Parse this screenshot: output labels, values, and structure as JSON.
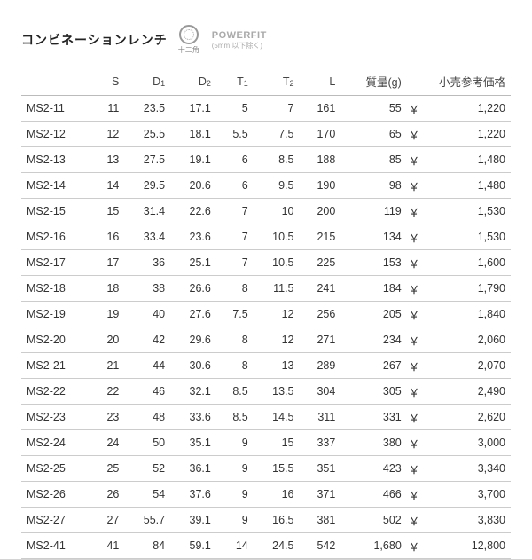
{
  "header": {
    "title": "コンビネーションレンチ",
    "icon_sub": "十二角",
    "brand_main": "POWERFIT",
    "brand_sub": "(5mm 以下除く)"
  },
  "table": {
    "columns": [
      "",
      "S",
      "D1",
      "D2",
      "T1",
      "T2",
      "L",
      "質量(g)",
      "小売参考価格"
    ],
    "col_subscripts": {
      "D1": "1",
      "D2": "2",
      "T1": "1",
      "T2": "2"
    },
    "yen_symbol": "￥",
    "rows": [
      [
        "MS2-11",
        "11",
        "23.5",
        "17.1",
        "5",
        "7",
        "161",
        "55",
        "1,220"
      ],
      [
        "MS2-12",
        "12",
        "25.5",
        "18.1",
        "5.5",
        "7.5",
        "170",
        "65",
        "1,220"
      ],
      [
        "MS2-13",
        "13",
        "27.5",
        "19.1",
        "6",
        "8.5",
        "188",
        "85",
        "1,480"
      ],
      [
        "MS2-14",
        "14",
        "29.5",
        "20.6",
        "6",
        "9.5",
        "190",
        "98",
        "1,480"
      ],
      [
        "MS2-15",
        "15",
        "31.4",
        "22.6",
        "7",
        "10",
        "200",
        "119",
        "1,530"
      ],
      [
        "MS2-16",
        "16",
        "33.4",
        "23.6",
        "7",
        "10.5",
        "215",
        "134",
        "1,530"
      ],
      [
        "MS2-17",
        "17",
        "36",
        "25.1",
        "7",
        "10.5",
        "225",
        "153",
        "1,600"
      ],
      [
        "MS2-18",
        "18",
        "38",
        "26.6",
        "8",
        "11.5",
        "241",
        "184",
        "1,790"
      ],
      [
        "MS2-19",
        "19",
        "40",
        "27.6",
        "7.5",
        "12",
        "256",
        "205",
        "1,840"
      ],
      [
        "MS2-20",
        "20",
        "42",
        "29.6",
        "8",
        "12",
        "271",
        "234",
        "2,060"
      ],
      [
        "MS2-21",
        "21",
        "44",
        "30.6",
        "8",
        "13",
        "289",
        "267",
        "2,070"
      ],
      [
        "MS2-22",
        "22",
        "46",
        "32.1",
        "8.5",
        "13.5",
        "304",
        "305",
        "2,490"
      ],
      [
        "MS2-23",
        "23",
        "48",
        "33.6",
        "8.5",
        "14.5",
        "311",
        "331",
        "2,620"
      ],
      [
        "MS2-24",
        "24",
        "50",
        "35.1",
        "9",
        "15",
        "337",
        "380",
        "3,000"
      ],
      [
        "MS2-25",
        "25",
        "52",
        "36.1",
        "9",
        "15.5",
        "351",
        "423",
        "3,340"
      ],
      [
        "MS2-26",
        "26",
        "54",
        "37.6",
        "9",
        "16",
        "371",
        "466",
        "3,700"
      ],
      [
        "MS2-27",
        "27",
        "55.7",
        "39.1",
        "9",
        "16.5",
        "381",
        "502",
        "3,830"
      ],
      [
        "MS2-41",
        "41",
        "84",
        "59.1",
        "14",
        "24.5",
        "542",
        "1,680",
        "12,800"
      ]
    ]
  },
  "style": {
    "background_color": "#ffffff",
    "text_color": "#333333",
    "border_color": "#cccccc",
    "header_border_color": "#bbbbbb",
    "title_fontsize": 14,
    "table_fontsize": 12.5
  }
}
